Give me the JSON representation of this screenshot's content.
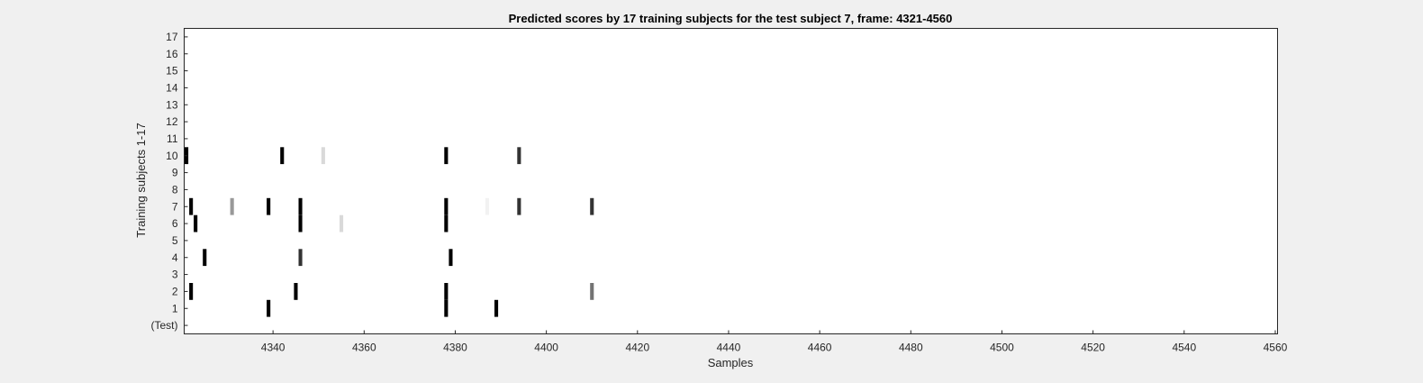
{
  "chart_data": {
    "type": "heatmap",
    "title": "Predicted scores by 17 training subjects for the test subject 7, frame: 4321-4560",
    "xlabel": "Samples",
    "ylabel": "Training subjects 1-17",
    "xlim": [
      4321,
      4560
    ],
    "x_ticks": [
      4340,
      4360,
      4380,
      4400,
      4420,
      4440,
      4460,
      4480,
      4500,
      4520,
      4540,
      4560
    ],
    "y_tick_labels": [
      "(Test)",
      "1",
      "2",
      "3",
      "4",
      "5",
      "6",
      "7",
      "8",
      "9",
      "10",
      "11",
      "12",
      "13",
      "14",
      "15",
      "16",
      "17"
    ],
    "colormap": "gray (white = low, black = high)",
    "grid": false,
    "rows": [
      {
        "row": "(Test)",
        "cells": []
      },
      {
        "row": "1",
        "cells": [
          {
            "x": 4339,
            "score": 1.0
          },
          {
            "x": 4378,
            "score": 1.0
          },
          {
            "x": 4389,
            "score": 1.0
          }
        ]
      },
      {
        "row": "2",
        "cells": [
          {
            "x": 4322,
            "score": 1.0
          },
          {
            "x": 4345,
            "score": 1.0
          },
          {
            "x": 4378,
            "score": 1.0
          },
          {
            "x": 4410,
            "score": 0.55
          }
        ]
      },
      {
        "row": "3",
        "cells": []
      },
      {
        "row": "4",
        "cells": [
          {
            "x": 4325,
            "score": 1.0
          },
          {
            "x": 4346,
            "score": 0.8
          },
          {
            "x": 4379,
            "score": 1.0
          }
        ]
      },
      {
        "row": "5",
        "cells": []
      },
      {
        "row": "6",
        "cells": [
          {
            "x": 4323,
            "score": 1.0
          },
          {
            "x": 4346,
            "score": 1.0
          },
          {
            "x": 4355,
            "score": 0.15
          },
          {
            "x": 4378,
            "score": 1.0
          }
        ]
      },
      {
        "row": "7",
        "cells": [
          {
            "x": 4322,
            "score": 1.0
          },
          {
            "x": 4331,
            "score": 0.4
          },
          {
            "x": 4339,
            "score": 1.0
          },
          {
            "x": 4346,
            "score": 1.0
          },
          {
            "x": 4378,
            "score": 1.0
          },
          {
            "x": 4387,
            "score": 0.05
          },
          {
            "x": 4394,
            "score": 0.8
          },
          {
            "x": 4410,
            "score": 0.8
          }
        ]
      },
      {
        "row": "8",
        "cells": []
      },
      {
        "row": "9",
        "cells": []
      },
      {
        "row": "10",
        "cells": [
          {
            "x": 4321,
            "score": 1.0
          },
          {
            "x": 4342,
            "score": 1.0
          },
          {
            "x": 4351,
            "score": 0.15
          },
          {
            "x": 4378,
            "score": 1.0
          },
          {
            "x": 4394,
            "score": 0.8
          }
        ]
      },
      {
        "row": "11",
        "cells": []
      },
      {
        "row": "12",
        "cells": []
      },
      {
        "row": "13",
        "cells": []
      },
      {
        "row": "14",
        "cells": []
      },
      {
        "row": "15",
        "cells": []
      },
      {
        "row": "16",
        "cells": []
      },
      {
        "row": "17",
        "cells": []
      }
    ]
  }
}
